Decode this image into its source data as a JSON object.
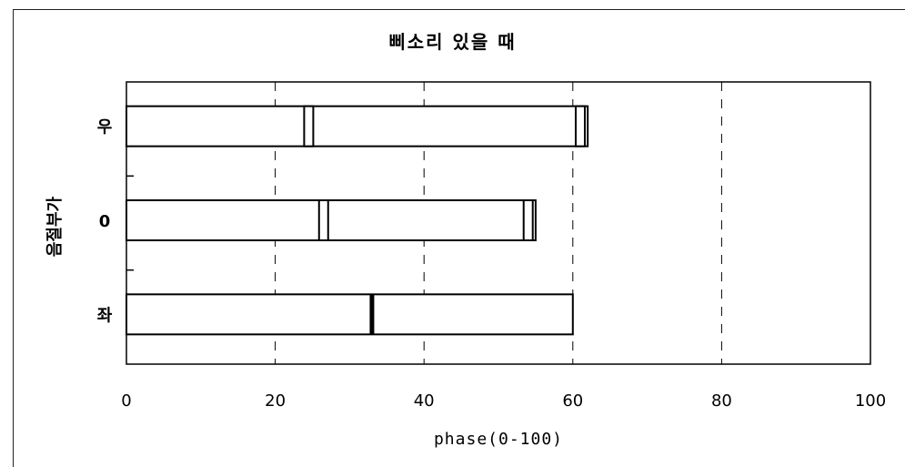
{
  "chart_data": {
    "type": "bar",
    "title": "삐소리 있을 때",
    "xlabel": "phase(0-100)",
    "ylabel": "음절부가",
    "xlim": [
      0,
      100
    ],
    "xticks": [
      0,
      20,
      40,
      60,
      80,
      100
    ],
    "grid": "vertical dashed",
    "categories": [
      "우",
      "0",
      "좌"
    ],
    "bars": [
      {
        "category": "우",
        "end": 62,
        "markers": [
          24.5,
          61
        ]
      },
      {
        "category": "0",
        "end": 55,
        "markers": [
          26.5,
          54
        ]
      },
      {
        "category": "좌",
        "end": 60,
        "markers": [
          33
        ]
      }
    ]
  }
}
